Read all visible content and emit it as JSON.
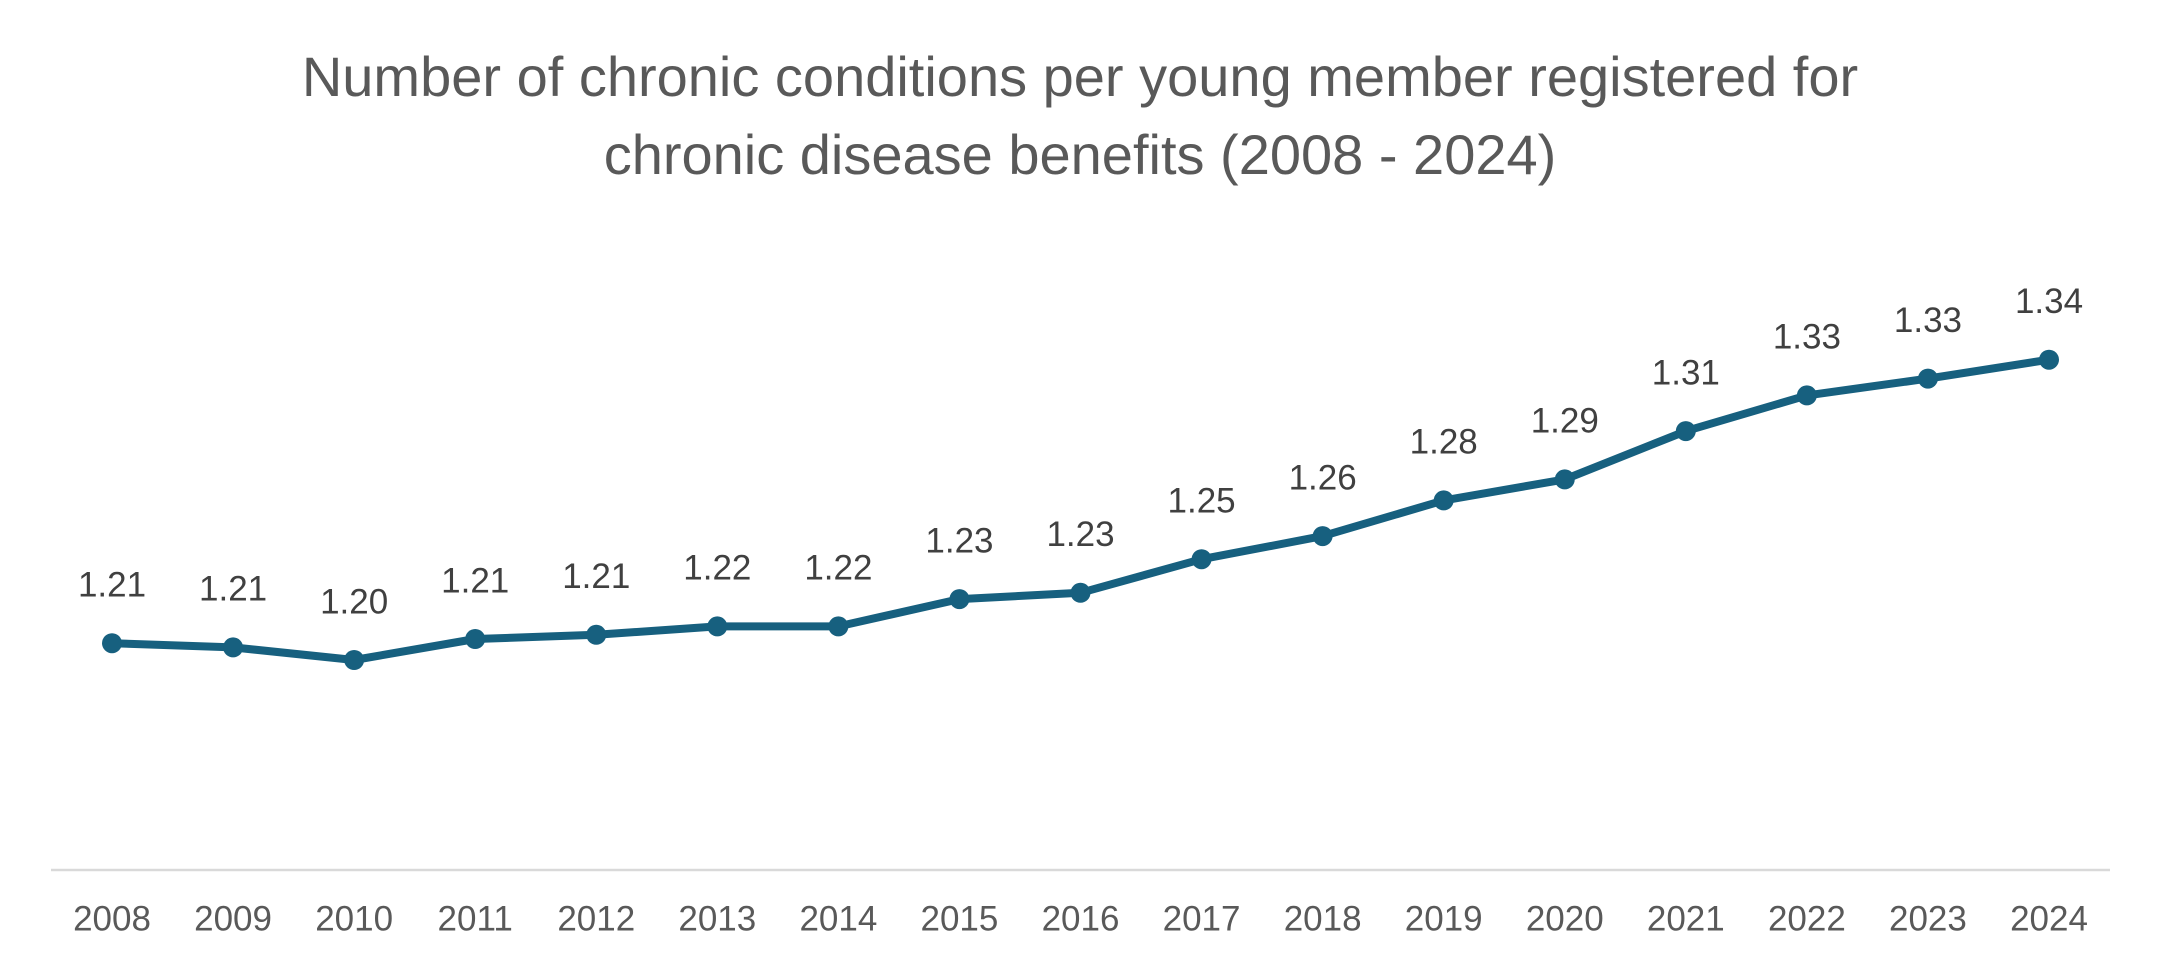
{
  "chart_data": {
    "type": "line",
    "title": "Number of chronic conditions per young member registered for chronic disease benefits (2008 - 2024)",
    "categories": [
      "2008",
      "2009",
      "2010",
      "2011",
      "2012",
      "2013",
      "2014",
      "2015",
      "2016",
      "2017",
      "2018",
      "2019",
      "2020",
      "2021",
      "2022",
      "2023",
      "2024"
    ],
    "series": [
      {
        "color": "#17607f",
        "values": [
          1.208,
          1.206,
          1.2,
          1.21,
          1.212,
          1.216,
          1.216,
          1.229,
          1.232,
          1.248,
          1.259,
          1.276,
          1.286,
          1.309,
          1.326,
          1.334,
          1.343
        ],
        "value_labels": [
          "1.21",
          "1.21",
          "1.20",
          "1.21",
          "1.21",
          "1.22",
          "1.22",
          "1.23",
          "1.23",
          "1.25",
          "1.26",
          "1.28",
          "1.29",
          "1.31",
          "1.33",
          "1.33",
          "1.34"
        ]
      }
    ],
    "ylim": [
      1.1,
      1.4
    ],
    "grid": false
  }
}
